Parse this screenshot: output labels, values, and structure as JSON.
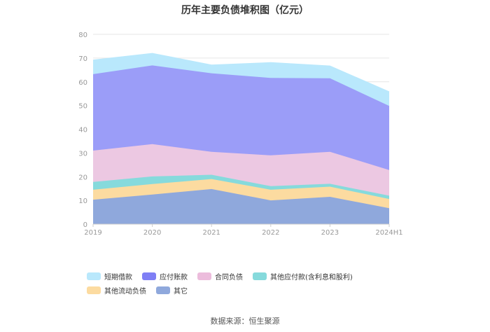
{
  "chart_data": {
    "type": "area",
    "stacked": true,
    "title": "历年主要负债堆积图（亿元）",
    "categories": [
      "2019",
      "2020",
      "2021",
      "2022",
      "2023",
      "2024H1"
    ],
    "ylim": [
      0,
      80
    ],
    "yticks": [
      0,
      10,
      20,
      30,
      40,
      50,
      60,
      70,
      80
    ],
    "grid": true,
    "legend_position": "bottom",
    "series": [
      {
        "name": "其它",
        "color": "#8fa8dc",
        "values": [
          10.3,
          12.5,
          14.8,
          10.0,
          11.5,
          6.7
        ]
      },
      {
        "name": "其他流动负债",
        "color": "#fcdba0",
        "values": [
          4.2,
          4.4,
          4.2,
          4.5,
          4.3,
          3.9
        ]
      },
      {
        "name": "其他应付款(含利息和股利)",
        "color": "#86dadc",
        "values": [
          3.3,
          3.2,
          1.8,
          1.5,
          1.2,
          1.4
        ]
      },
      {
        "name": "合同负债",
        "color": "#ecc8e2",
        "values": [
          13.2,
          13.6,
          9.7,
          13.0,
          13.5,
          10.8
        ]
      },
      {
        "name": "应付账款",
        "color": "#9b9df8",
        "values": [
          32.2,
          33.2,
          33.1,
          32.6,
          31.0,
          27.0
        ]
      },
      {
        "name": "短期借款",
        "color": "#b9e8fc",
        "values": [
          6.0,
          5.1,
          3.5,
          6.5,
          5.2,
          6.0
        ]
      }
    ],
    "legend_order": [
      "短期借款",
      "应付账款",
      "合同负债",
      "其他应付款(含利息和股利)",
      "其他流动负债",
      "其它"
    ],
    "legend_colors": [
      "#b9e8fc",
      "#7f7ff5",
      "#ecbcdc",
      "#86dadc",
      "#fcdba0",
      "#8fa8dc"
    ]
  },
  "source": "数据来源：恒生聚源"
}
